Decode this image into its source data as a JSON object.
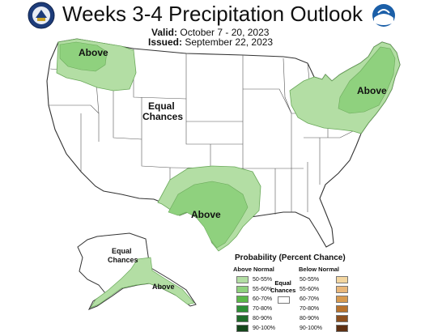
{
  "title": "Weeks 3-4 Precipitation Outlook",
  "valid_label": "Valid:",
  "valid_dates": "October 7 - 20, 2023",
  "issued_label": "Issued:",
  "issued_date": "September 22, 2023",
  "map_labels": {
    "northwest": "Above",
    "central_line1": "Equal",
    "central_line2": "Chances",
    "northeast": "Above",
    "south": "Above",
    "alaska_eq_line1": "Equal",
    "alaska_eq_line2": "Chances",
    "alaska_south": "Above"
  },
  "legend": {
    "title": "Probability (Percent Chance)",
    "above_header": "Above Normal",
    "below_header": "Below Normal",
    "equal_line1": "Equal",
    "equal_line2": "Chances",
    "categories": [
      "50-55%",
      "55-60%",
      "60-70%",
      "70-80%",
      "80-90%",
      "90-100%"
    ],
    "above_colors": [
      "#b3dea4",
      "#8fd17e",
      "#5cb84a",
      "#2e8f36",
      "#1f6b2a",
      "#13461a"
    ],
    "below_colors": [
      "#f3d6a0",
      "#e9b77a",
      "#d79a4f",
      "#b8722c",
      "#8c4f1e",
      "#5d2f12"
    ]
  },
  "probability_shown": {
    "northwest": "50-55% / 55-60% Above",
    "northeast": "50-55% / 55-60% Above",
    "south": "50-55% / 55-60% Above",
    "alaska_south": "50-55% Above"
  },
  "logos": [
    "doc-seal-icon",
    "noaa-logo-icon"
  ]
}
